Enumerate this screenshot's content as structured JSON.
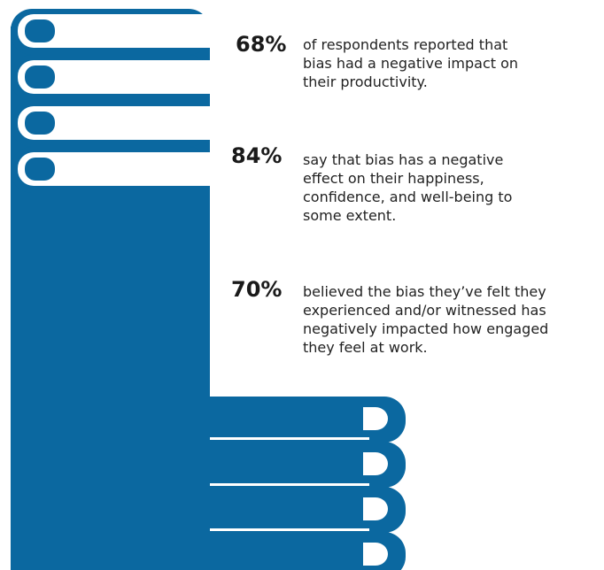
{
  "items": [
    {
      "stat": "68%",
      "lines": [
        "of respondents reported that",
        "bias had a negative impact on",
        "their productivity."
      ]
    },
    {
      "stat": "84%",
      "lines": [
        "say that bias has a negative",
        "effect on their happiness,",
        "confidence, and well-being to",
        "some extent."
      ]
    },
    {
      "stat": "70%",
      "lines": [
        "believed the bias they’ve felt they",
        "experienced and/or witnessed has",
        "negatively impacted how engaged",
        "they feel at work."
      ]
    }
  ]
}
